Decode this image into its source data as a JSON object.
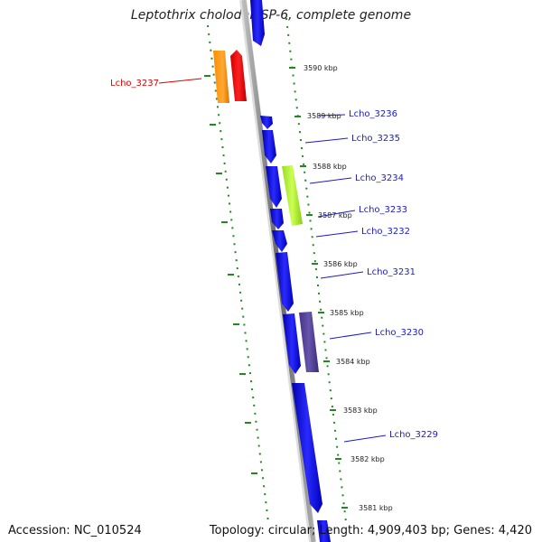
{
  "title": "Leptothrix cholodnii SP-6, complete genome",
  "accession": "Accession: NC_010524",
  "summary": "Topology: circular; Length: 4,909,403 bp; Genes: 4,420",
  "colors": {
    "backbone": "#888888",
    "tick": "#228822",
    "forward_gene": "#0000ee",
    "label_blue": "#1a1acc",
    "label_red": "#dd0000"
  },
  "kbp_ticks": [
    {
      "label": "3590 kbp",
      "kbp": 3590
    },
    {
      "label": "3589 kbp",
      "kbp": 3589
    },
    {
      "label": "3588 kbp",
      "kbp": 3588
    },
    {
      "label": "3587 kbp",
      "kbp": 3587
    },
    {
      "label": "3586 kbp",
      "kbp": 3586
    },
    {
      "label": "3585 kbp",
      "kbp": 3585
    },
    {
      "label": "3584 kbp",
      "kbp": 3584
    },
    {
      "label": "3583 kbp",
      "kbp": 3583
    },
    {
      "label": "3582 kbp",
      "kbp": 3582
    },
    {
      "label": "3581 kbp",
      "kbp": 3581
    }
  ],
  "genes": [
    {
      "name": "Lcho_3237",
      "strand": "reverse",
      "color": "#ff8800",
      "label_color": "#dd0000"
    },
    {
      "name": "Lcho_3236",
      "strand": "forward",
      "color": "#0000ee",
      "label_color": "#1a1acc"
    },
    {
      "name": "Lcho_3235",
      "strand": "forward",
      "color": "#0000ee",
      "label_color": "#1a1acc"
    },
    {
      "name": "Lcho_3234",
      "strand": "forward",
      "color": "#0000ee",
      "label_color": "#1a1acc"
    },
    {
      "name": "Lcho_3233",
      "strand": "forward",
      "color": "#0000ee",
      "label_color": "#1a1acc"
    },
    {
      "name": "Lcho_3232",
      "strand": "forward",
      "color": "#0000ee",
      "label_color": "#1a1acc"
    },
    {
      "name": "Lcho_3231",
      "strand": "forward",
      "color": "#0000ee",
      "label_color": "#1a1acc"
    },
    {
      "name": "Lcho_3230",
      "strand": "forward",
      "color": "#0000ee",
      "label_color": "#1a1acc"
    },
    {
      "name": "Lcho_3229",
      "strand": "forward",
      "color": "#0000ee",
      "label_color": "#1a1acc"
    }
  ]
}
